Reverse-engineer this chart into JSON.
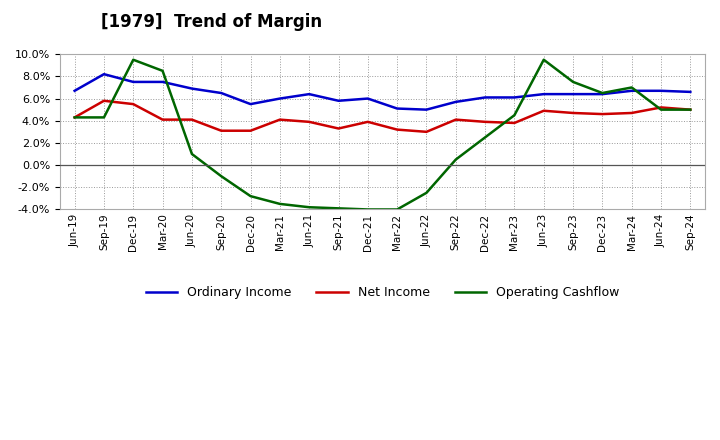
{
  "title": "[1979]  Trend of Margin",
  "x_labels": [
    "Jun-19",
    "Sep-19",
    "Dec-19",
    "Mar-20",
    "Jun-20",
    "Sep-20",
    "Dec-20",
    "Mar-21",
    "Jun-21",
    "Sep-21",
    "Dec-21",
    "Mar-22",
    "Jun-22",
    "Sep-22",
    "Dec-22",
    "Mar-23",
    "Jun-23",
    "Sep-23",
    "Dec-23",
    "Mar-24",
    "Jun-24",
    "Sep-24"
  ],
  "ordinary_income": [
    6.7,
    8.2,
    7.5,
    7.5,
    6.9,
    6.5,
    5.5,
    6.0,
    6.4,
    5.8,
    6.0,
    5.1,
    5.0,
    5.7,
    6.1,
    6.1,
    6.4,
    6.4,
    6.4,
    6.7,
    6.7,
    6.6
  ],
  "net_income": [
    4.3,
    5.8,
    5.5,
    4.1,
    4.1,
    3.1,
    3.1,
    4.1,
    3.9,
    3.3,
    3.9,
    3.2,
    3.0,
    4.1,
    3.9,
    3.8,
    4.9,
    4.7,
    4.6,
    4.7,
    5.2,
    5.0
  ],
  "operating_cashflow": [
    4.3,
    4.3,
    9.5,
    8.5,
    1.0,
    -1.0,
    -2.8,
    -3.5,
    -3.8,
    -3.9,
    -4.0,
    -4.0,
    -2.5,
    0.5,
    2.5,
    4.5,
    9.5,
    7.5,
    6.5,
    7.0,
    5.0,
    5.0
  ],
  "ylim": [
    -4.0,
    10.0
  ],
  "yticks": [
    -4.0,
    -2.0,
    0.0,
    2.0,
    4.0,
    6.0,
    8.0,
    10.0
  ],
  "colors": {
    "ordinary_income": "#0000cc",
    "net_income": "#cc0000",
    "operating_cashflow": "#006600"
  },
  "legend_labels": [
    "Ordinary Income",
    "Net Income",
    "Operating Cashflow"
  ],
  "background_color": "#ffffff",
  "grid_color": "#999999"
}
